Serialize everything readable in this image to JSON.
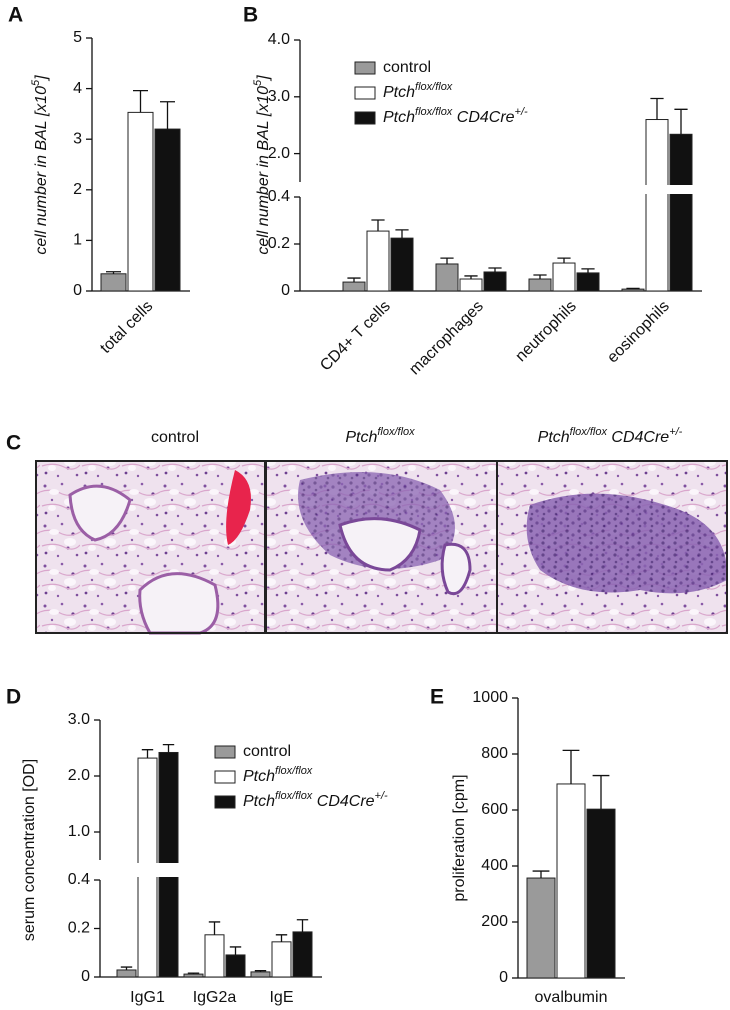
{
  "chart_data": [
    {
      "type": "bar",
      "panel": "A",
      "ylabel": [
        "cell number in BAL [x10",
        "5",
        "]"
      ],
      "categories": [
        "total cells"
      ],
      "xtick_rotation": 45,
      "series": [
        {
          "color": "#9a9a9a",
          "values": [
            0.34
          ],
          "errors": [
            0.04
          ]
        },
        {
          "color": "#ffffff",
          "values": [
            3.53
          ],
          "errors": [
            0.43
          ]
        },
        {
          "color": "#111111",
          "values": [
            3.2
          ],
          "errors": [
            0.54
          ]
        }
      ],
      "ylim": [
        0,
        5
      ],
      "yticks": [
        0,
        1,
        2,
        3,
        4,
        5
      ]
    },
    {
      "type": "bar",
      "panel": "B",
      "ylabel": [
        "cell number in BAL [x10",
        "5",
        "]"
      ],
      "categories": [
        "CD4+ T cells",
        "macrophages",
        "neutrophils",
        "eosinophils"
      ],
      "xtick_rotation": 45,
      "legend": "upper-left",
      "series": [
        {
          "name": [
            "control"
          ],
          "color": "#9a9a9a",
          "values": [
            0.038,
            0.115,
            0.051,
            0.008
          ],
          "errors": [
            0.017,
            0.025,
            0.017,
            0.003
          ]
        },
        {
          "name": [
            "Ptch",
            "flox/flox"
          ],
          "color": "#ffffff",
          "values": [
            0.255,
            0.051,
            0.119,
            2.6
          ],
          "errors": [
            0.047,
            0.013,
            0.021,
            0.37
          ]
        },
        {
          "name": [
            "Ptch",
            "flox/flox",
            " CD4Cre",
            "+/-"
          ],
          "color": "#111111",
          "values": [
            0.225,
            0.081,
            0.077,
            2.34
          ],
          "errors": [
            0.035,
            0.017,
            0.017,
            0.44
          ]
        }
      ],
      "ylim": [
        0,
        4.0
      ],
      "y_break": [
        0.4,
        1.5
      ],
      "yticks": [
        0,
        0.2,
        0.4,
        {
          "value": 2,
          "label": "2.0"
        },
        {
          "value": 3,
          "label": "3.0"
        },
        {
          "value": 4,
          "label": "4.0"
        }
      ]
    },
    {
      "type": "bar",
      "panel": "D",
      "ylabel": [
        "serum concentration [OD]"
      ],
      "categories": [
        "IgG1",
        "IgG2a",
        "IgE"
      ],
      "legend": "upper-left",
      "series": [
        {
          "name": [
            "control"
          ],
          "color": "#9a9a9a",
          "values": [
            0.029,
            0.012,
            0.021
          ],
          "errors": [
            0.012,
            0.004,
            0.005
          ]
        },
        {
          "name": [
            "Ptch",
            "flox/flox"
          ],
          "color": "#ffffff",
          "values": [
            2.32,
            0.174,
            0.145
          ],
          "errors": [
            0.15,
            0.053,
            0.029
          ]
        },
        {
          "name": [
            "Ptch",
            "flox/flox",
            " CD4Cre",
            "+/-"
          ],
          "color": "#111111",
          "values": [
            2.42,
            0.091,
            0.186
          ],
          "errors": [
            0.14,
            0.033,
            0.05
          ]
        }
      ],
      "ylim": [
        0,
        3.0
      ],
      "y_break": [
        0.4,
        0.5
      ],
      "yticks": [
        0,
        0.2,
        0.4,
        {
          "value": 1,
          "label": "1.0"
        },
        {
          "value": 2,
          "label": "2.0"
        },
        {
          "value": 3,
          "label": "3.0"
        }
      ]
    },
    {
      "type": "bar",
      "panel": "E",
      "ylabel": [
        "proliferation [cpm]"
      ],
      "categories": [
        "ovalbumin"
      ],
      "series": [
        {
          "color": "#9a9a9a",
          "values": [
            357
          ],
          "errors": [
            25
          ]
        },
        {
          "color": "#ffffff",
          "values": [
            693
          ],
          "errors": [
            120
          ]
        },
        {
          "color": "#111111",
          "values": [
            603
          ],
          "errors": [
            120
          ]
        }
      ],
      "ylim": [
        0,
        1000
      ],
      "yticks": [
        0,
        200,
        400,
        600,
        800,
        1000
      ]
    }
  ],
  "micrographs": {
    "panel": "C",
    "titles": [
      [
        "control"
      ],
      [
        "Ptch",
        "flox/flox"
      ],
      [
        "Ptch",
        "flox/flox",
        " CD4Cre",
        "+/-"
      ]
    ]
  }
}
